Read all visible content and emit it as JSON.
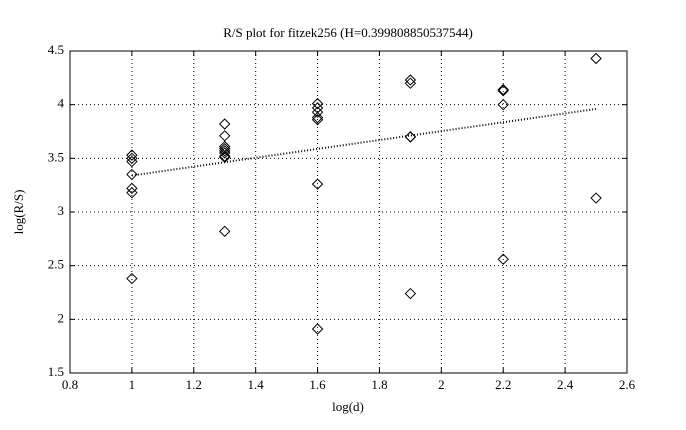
{
  "chart_data": {
    "type": "scatter",
    "title": "R/S plot for fitzek256 (H=0.399808850537544)",
    "x_label": "log(d)",
    "y_label": "log(R/S)",
    "xlim": [
      0.8,
      2.6
    ],
    "xticks": [
      0.8,
      1,
      1.2,
      1.4,
      1.6,
      1.8,
      2,
      2.2,
      2.4,
      2.6
    ],
    "ylim": [
      1.5,
      4.5
    ],
    "yticks": [
      1.5,
      2,
      2.5,
      3,
      3.5,
      4,
      4.5
    ],
    "grid": true,
    "series": [
      {
        "color": "#000000",
        "marker": "diamond",
        "x": [
          1,
          1,
          1,
          1,
          1,
          1,
          1,
          1.3,
          1.3,
          1.3,
          1.3,
          1.3,
          1.3,
          1.3,
          1.3,
          1.3,
          1.6,
          1.6,
          1.6,
          1.6,
          1.6,
          1.6,
          1.6,
          1.9,
          1.9,
          1.9,
          1.9,
          1.9,
          2.2,
          2.2,
          2.2,
          2.2,
          2.5,
          2.5
        ],
        "values": [
          3.53,
          3.5,
          3.47,
          3.35,
          3.22,
          3.18,
          2.38,
          3.82,
          3.71,
          3.61,
          3.59,
          3.57,
          3.55,
          3.52,
          3.51,
          2.82,
          4.01,
          3.97,
          3.93,
          3.88,
          3.86,
          3.26,
          1.91,
          4.23,
          4.2,
          3.7,
          3.7,
          2.24,
          4.14,
          4.13,
          4.0,
          2.56,
          4.43,
          3.13
        ]
      },
      {
        "color": "#000000",
        "marker": "dotted-line",
        "x": [
          1,
          2.5
        ],
        "values": [
          3.34,
          3.96
        ]
      }
    ]
  }
}
